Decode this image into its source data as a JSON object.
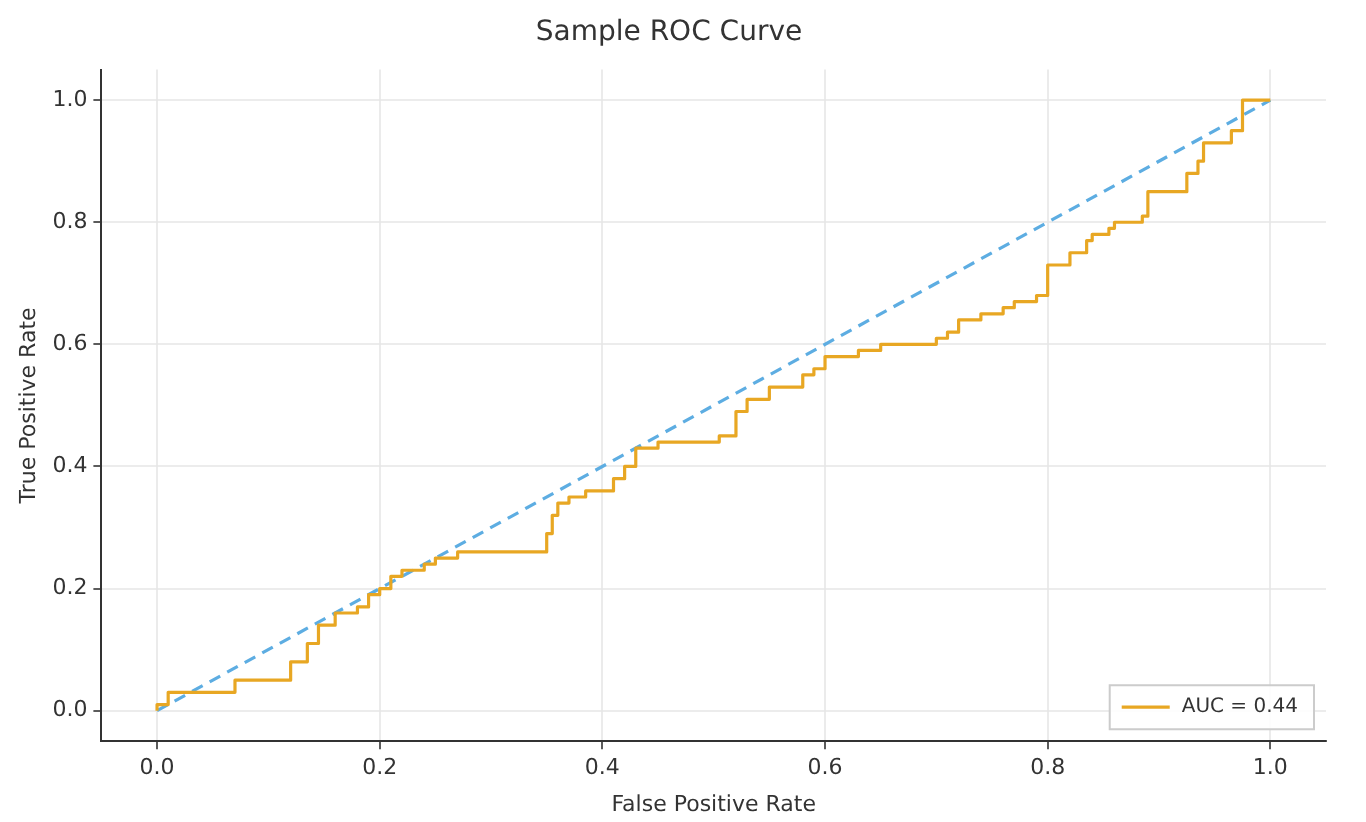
{
  "chart_data": {
    "type": "line",
    "title": "Sample ROC Curve",
    "xlabel": "False Positive Rate",
    "ylabel": "True Positive Rate",
    "xlim": [
      -0.05,
      1.05
    ],
    "ylim": [
      -0.05,
      1.05
    ],
    "xticks": [
      {
        "value": 0,
        "label": "0.0"
      },
      0.2,
      0.4,
      0.6,
      0.8,
      {
        "value": 1,
        "label": "1.0"
      }
    ],
    "yticks": [
      {
        "value": 0,
        "label": "0.0"
      },
      0.2,
      0.4,
      0.6,
      0.8,
      {
        "value": 1,
        "label": "1.0"
      }
    ],
    "grid": true,
    "legend": "bottom right",
    "marker": "none",
    "series": [
      {
        "name": "AUC = 0.44",
        "type": "step",
        "color": "#e8a723",
        "line_style": "solid",
        "x": [
          0,
          0.01,
          0.07,
          0.12,
          0.135,
          0.145,
          0.16,
          0.18,
          0.19,
          0.2,
          0.21,
          0.22,
          0.24,
          0.25,
          0.27,
          0.3,
          0.35,
          0.355,
          0.36,
          0.37,
          0.385,
          0.41,
          0.42,
          0.43,
          0.45,
          0.505,
          0.52,
          0.53,
          0.55,
          0.58,
          0.59,
          0.6,
          0.63,
          0.65,
          0.7,
          0.71,
          0.72,
          0.74,
          0.76,
          0.77,
          0.79,
          0.8,
          0.82,
          0.835,
          0.84,
          0.855,
          0.86,
          0.885,
          0.89,
          0.925,
          0.935,
          0.94,
          0.965,
          0.975,
          1.0
        ],
        "values": [
          0,
          0.01,
          0.03,
          0.05,
          0.08,
          0.11,
          0.14,
          0.16,
          0.17,
          0.19,
          0.2,
          0.22,
          0.23,
          0.24,
          0.25,
          0.26,
          0.26,
          0.29,
          0.32,
          0.34,
          0.35,
          0.36,
          0.38,
          0.4,
          0.43,
          0.44,
          0.45,
          0.49,
          0.51,
          0.53,
          0.55,
          0.56,
          0.58,
          0.59,
          0.6,
          0.61,
          0.62,
          0.64,
          0.65,
          0.66,
          0.67,
          0.68,
          0.73,
          0.75,
          0.77,
          0.78,
          0.79,
          0.8,
          0.81,
          0.85,
          0.88,
          0.9,
          0.93,
          0.95,
          1.0
        ]
      },
      {
        "color": "#5dade2",
        "line_style": "dashed",
        "x": [
          0,
          1
        ],
        "values": [
          0,
          1
        ]
      }
    ]
  }
}
